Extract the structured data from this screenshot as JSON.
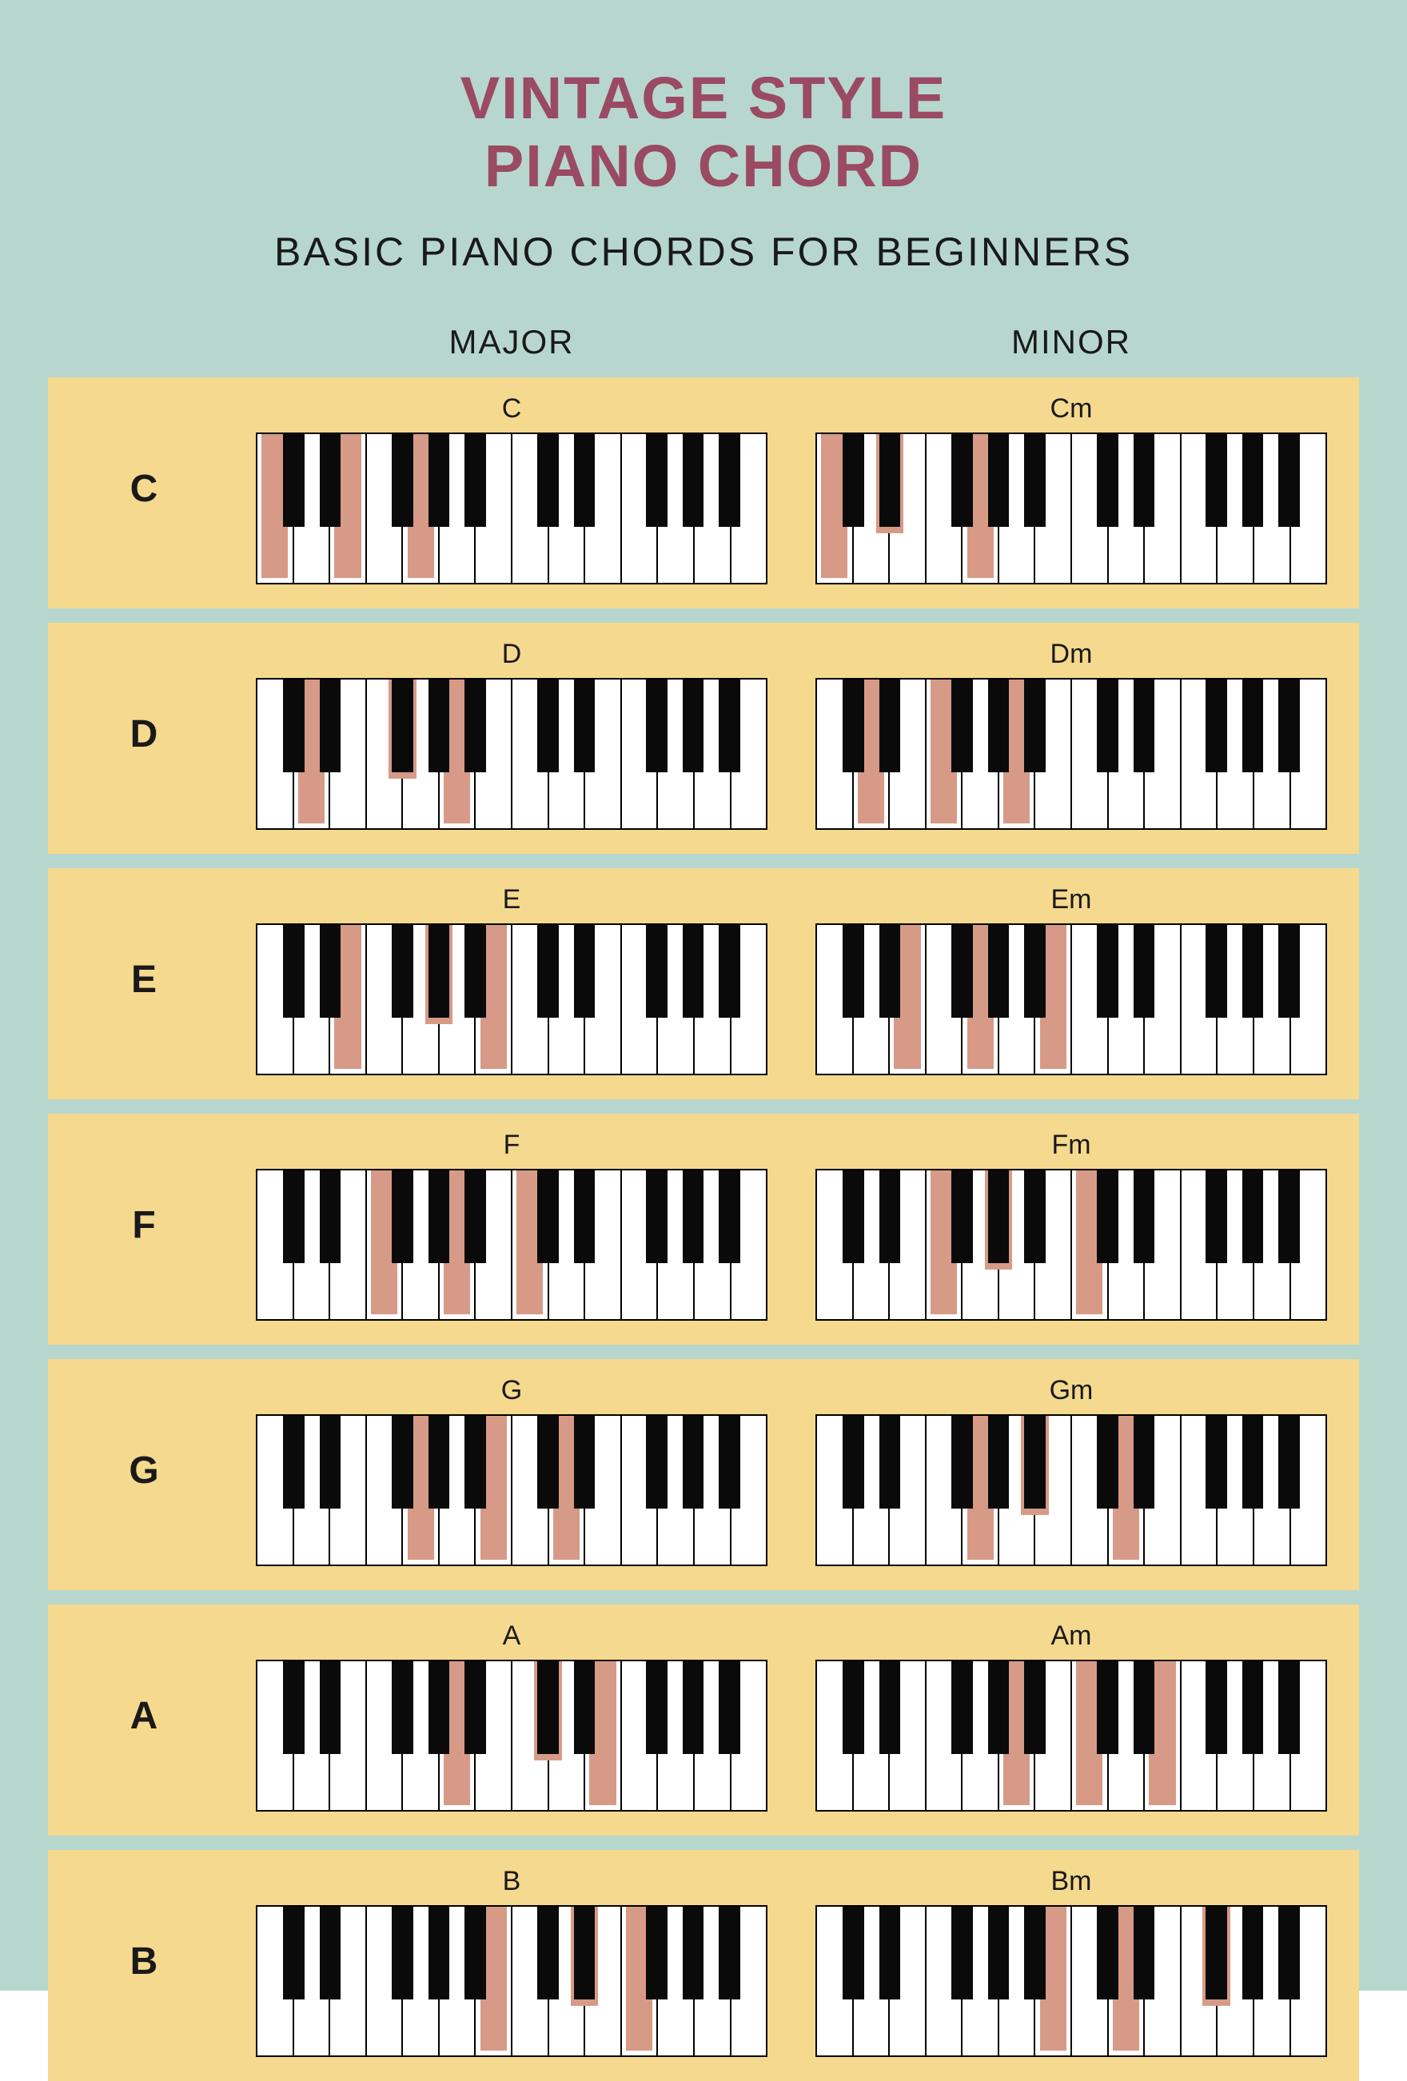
{
  "colors": {
    "page_bg": "#b7d7ce",
    "title": "#9a4a63",
    "subtitle": "#1a1a1a",
    "row_bg": "#f5d98e",
    "highlight": "#d79a87",
    "black_key": "#0a0a0a",
    "white_key": "#ffffff",
    "border": "#000000"
  },
  "typography": {
    "title_size": 74,
    "subtitle_size": 50,
    "col_header_size": 42,
    "row_label_size": 48,
    "chord_name_size": 34
  },
  "title_line1": "VINTAGE STYLE",
  "title_line2": "PIANO CHORD",
  "subtitle": "BASIC PIANO CHORDS FOR BEGINNERS",
  "columns": {
    "major": "MAJOR",
    "minor": "MINOR"
  },
  "keyboard": {
    "white_count": 14,
    "black_positions": [
      0,
      1,
      3,
      4,
      5,
      7,
      8,
      10,
      11,
      12
    ],
    "black_width_pct": 4.2
  },
  "rows": [
    {
      "label": "C",
      "major": {
        "name": "C",
        "white_hl": [
          0,
          2,
          4
        ],
        "black_hl": []
      },
      "minor": {
        "name": "Cm",
        "white_hl": [
          0,
          4
        ],
        "black_hl": [
          1
        ]
      }
    },
    {
      "label": "D",
      "major": {
        "name": "D",
        "white_hl": [
          1,
          5
        ],
        "black_hl": [
          2
        ]
      },
      "minor": {
        "name": "Dm",
        "white_hl": [
          1,
          3,
          5
        ],
        "black_hl": []
      }
    },
    {
      "label": "E",
      "major": {
        "name": "E",
        "white_hl": [
          2,
          6
        ],
        "black_hl": [
          3
        ]
      },
      "minor": {
        "name": "Em",
        "white_hl": [
          2,
          4,
          6
        ],
        "black_hl": []
      }
    },
    {
      "label": "F",
      "major": {
        "name": "F",
        "white_hl": [
          3,
          5,
          7
        ],
        "black_hl": []
      },
      "minor": {
        "name": "Fm",
        "white_hl": [
          3,
          7
        ],
        "black_hl": [
          3
        ]
      }
    },
    {
      "label": "G",
      "major": {
        "name": "G",
        "white_hl": [
          4,
          6,
          8
        ],
        "black_hl": []
      },
      "minor": {
        "name": "Gm",
        "white_hl": [
          4,
          8
        ],
        "black_hl": [
          4
        ]
      }
    },
    {
      "label": "A",
      "major": {
        "name": "A",
        "white_hl": [
          5,
          9
        ],
        "black_hl": [
          5
        ]
      },
      "minor": {
        "name": "Am",
        "white_hl": [
          5,
          7,
          9
        ],
        "black_hl": []
      }
    },
    {
      "label": "B",
      "major": {
        "name": "B",
        "white_hl": [
          6,
          10
        ],
        "black_hl": [
          6
        ]
      },
      "minor": {
        "name": "Bm",
        "white_hl": [
          6,
          8
        ],
        "black_hl": [
          7
        ]
      }
    }
  ]
}
